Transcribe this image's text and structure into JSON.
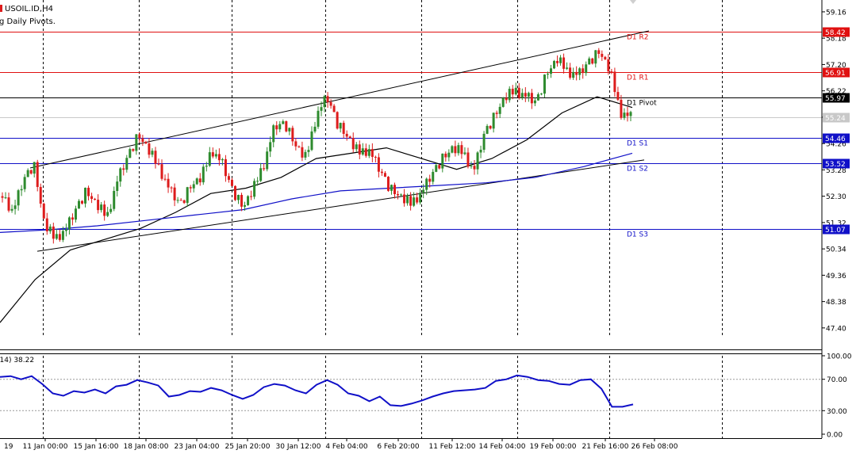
{
  "header": {
    "symbol": "USOIL.ID,H4",
    "indicator": "g Daily Pivots."
  },
  "rsi": {
    "label": "(14) 38.22",
    "ticks": [
      "100.00",
      "70.00",
      "30.00",
      "0.00"
    ]
  },
  "colors": {
    "bull_candle": "#2e8b2e",
    "bear_candle": "#dd1c1c",
    "resistance": "#e01010",
    "support": "#1010c8",
    "pivot": "#000000",
    "ma_fast": "#000000",
    "ma_slow": "#1010c8",
    "rsi_line": "#1010c8"
  },
  "chart_data": {
    "type": "candlestick",
    "ylim": [
      46.6,
      59.6
    ],
    "price_ticks": [
      "59.16",
      "58.18",
      "57.20",
      "56.22",
      "55.24",
      "54.26",
      "53.28",
      "52.30",
      "51.32",
      "50.34",
      "49.36",
      "48.38",
      "47.40"
    ],
    "time_labels": [
      "19",
      "11 Jan 00:00",
      "15 Jan 16:00",
      "18 Jan 08:00",
      "23 Jan 04:00",
      "25 Jan 20:00",
      "30 Jan 12:00",
      "4 Feb 04:00",
      "6 Feb 20:00",
      "11 Feb 12:00",
      "14 Feb 04:00",
      "19 Feb 00:00",
      "21 Feb 16:00",
      "26 Feb 08:00"
    ],
    "pivot_lines": [
      {
        "label": "D1 R2",
        "value": "58.42",
        "kind": "resistance"
      },
      {
        "label": "D1 R1",
        "value": "56.91",
        "kind": "resistance"
      },
      {
        "label": "D1 Pivot",
        "value": "55.97",
        "kind": "pivot"
      },
      {
        "label": "D1 S1",
        "value": "54.46",
        "kind": "support"
      },
      {
        "label": "D1 S2",
        "value": "53.52",
        "kind": "support"
      },
      {
        "label": "D1 S3",
        "value": "51.07",
        "kind": "support"
      }
    ],
    "current_price": "55.24",
    "close_path": [
      52.3,
      51.7,
      52.9,
      53.5,
      51.3,
      50.7,
      51.0,
      51.8,
      52.5,
      52.0,
      51.5,
      52.9,
      53.8,
      54.6,
      54.0,
      53.3,
      52.5,
      52.0,
      52.7,
      53.0,
      54.0,
      53.5,
      52.5,
      51.9,
      52.6,
      53.5,
      54.9,
      55.0,
      54.2,
      53.7,
      55.3,
      56.0,
      55.0,
      54.5,
      53.9,
      54.0,
      53.3,
      52.6,
      52.3,
      52.0,
      52.4,
      53.1,
      53.7,
      54.1,
      53.9,
      53.2,
      54.6,
      55.3,
      56.0,
      56.2,
      56.0,
      55.8,
      56.9,
      57.4,
      56.9,
      56.8,
      57.3,
      57.7,
      57.0,
      55.4,
      55.24
    ],
    "ma_fast": [
      47.6,
      49.2,
      50.3,
      50.7,
      51.1,
      51.7,
      52.4,
      52.6,
      53.0,
      53.7,
      53.9,
      54.1,
      53.7,
      53.3,
      53.7,
      54.4,
      55.4,
      56.0,
      55.6
    ],
    "ma_slow": [
      50.95,
      51.05,
      51.2,
      51.4,
      51.6,
      51.8,
      52.2,
      52.5,
      52.6,
      52.7,
      52.8,
      53.0,
      53.4,
      53.9
    ],
    "trendline_upper": [
      [
        38,
        53.35
      ],
      [
        818,
        58.45
      ]
    ],
    "trendline_lower": [
      [
        47,
        50.25
      ],
      [
        812,
        53.65
      ]
    ],
    "rsi_values": [
      73,
      74,
      70,
      74,
      64,
      52,
      49,
      55,
      53,
      57,
      52,
      61,
      63,
      69,
      66,
      62,
      48,
      50,
      55,
      54,
      59,
      56,
      50,
      45,
      50,
      60,
      64,
      62,
      56,
      52,
      63,
      69,
      63,
      52,
      49,
      42,
      48,
      37,
      36,
      39,
      43,
      48,
      52,
      55,
      56,
      57,
      59,
      68,
      70,
      75,
      73,
      69,
      68,
      64,
      63,
      69,
      70,
      58,
      35,
      35,
      38
    ]
  }
}
